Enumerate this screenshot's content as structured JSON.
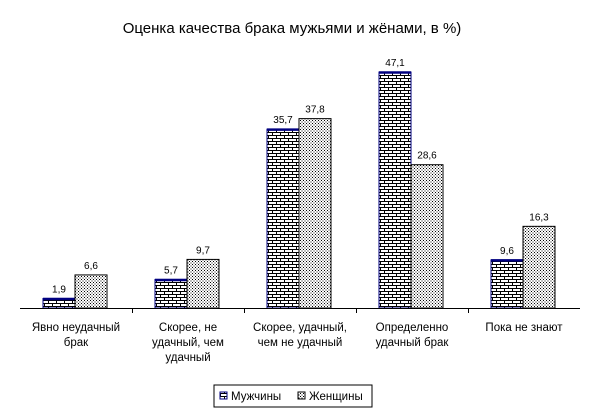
{
  "chart_data": {
    "type": "bar",
    "title": "Оценка качества брака мужьями и жёнами, в %)",
    "categories": [
      [
        "Явно неудачный",
        "брак"
      ],
      [
        "Скорее, не",
        "удачный, чем",
        "удачный"
      ],
      [
        "Скорее, удачный,",
        "чем не удачный"
      ],
      [
        "Определенно",
        "удачный брак"
      ],
      [
        "Пока не знают"
      ]
    ],
    "series": [
      {
        "name": "Мужчины",
        "values": [
          1.9,
          5.7,
          35.7,
          47.1,
          9.6
        ],
        "value_labels": [
          "1,9",
          "5,7",
          "35,7",
          "47,1",
          "9,6"
        ]
      },
      {
        "name": "Женщины",
        "values": [
          6.6,
          9.7,
          37.8,
          28.6,
          16.3
        ],
        "value_labels": [
          "6,6",
          "9,7",
          "37,8",
          "28,6",
          "16,3"
        ]
      }
    ],
    "ylim": [
      0,
      50
    ],
    "grid": false,
    "legend_position": "bottom",
    "colors": {
      "men_outline": "#000080",
      "women_outline": "#000000",
      "pattern": "#000000",
      "background": "#ffffff"
    }
  }
}
